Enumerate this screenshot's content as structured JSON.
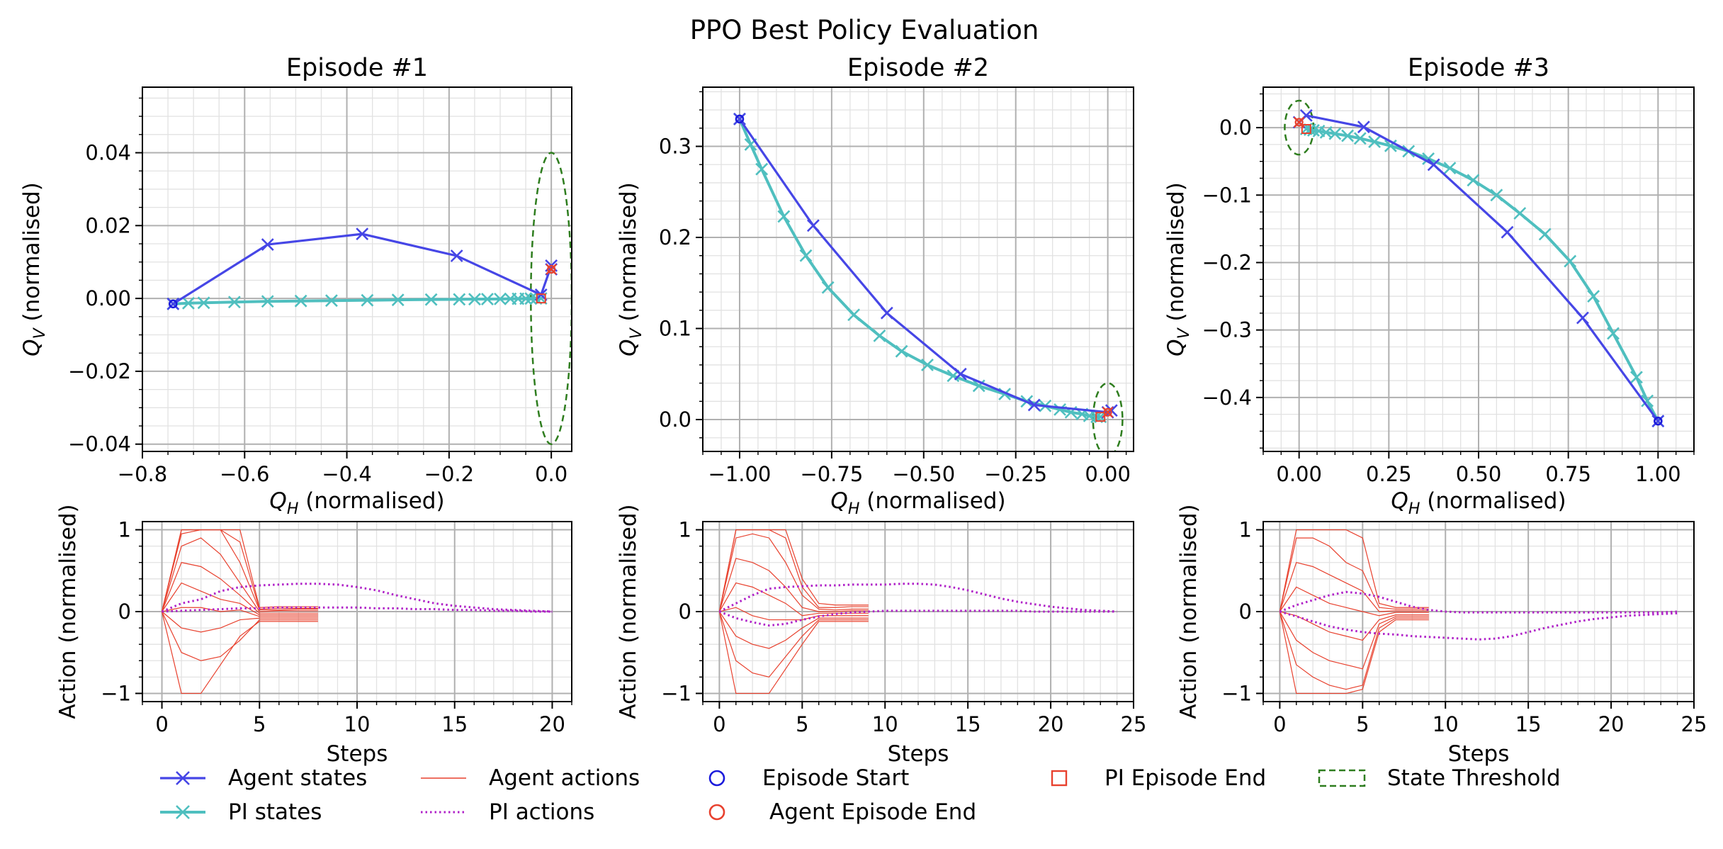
{
  "figure_title": "PPO Best Policy Evaluation",
  "colors": {
    "agent_state": "#4646e6",
    "pi_state": "#4fbfbf",
    "agent_action": "#e8412e",
    "pi_action": "#b022c8",
    "episode_start": "#1b1bdc",
    "agent_end": "#e8412e",
    "pi_end": "#e8412e",
    "threshold": "#2e7d1e",
    "grid_major": "#b0b0b0",
    "grid_minor": "#e2e2e2"
  },
  "legend": {
    "agent_states": "Agent states",
    "pi_states": "PI states",
    "agent_actions": "Agent actions",
    "pi_actions": "PI actions",
    "episode_start": "Episode Start",
    "agent_episode_end": "Agent Episode End",
    "pi_episode_end": "PI Episode End",
    "state_threshold": "State Threshold"
  },
  "chart_data": [
    {
      "type": "line",
      "title": "Episode #1",
      "xlabel_base": "Q",
      "xlabel_sub": "H",
      "xlabel_rest": " (normalised)",
      "ylabel_base": "Q",
      "ylabel_sub": "V",
      "ylabel_rest": " (normalised)",
      "xlim": [
        -0.8,
        0.04
      ],
      "ylim": [
        -0.042,
        0.058
      ],
      "xticks": [
        -0.8,
        -0.6,
        -0.4,
        -0.2,
        0.0
      ],
      "xtick_labels": [
        "−0.8",
        "−0.6",
        "−0.4",
        "−0.2",
        "0.0"
      ],
      "yticks": [
        -0.04,
        -0.02,
        0.0,
        0.02,
        0.04
      ],
      "ytick_labels": [
        "−0.04",
        "−0.02",
        "0.00",
        "0.02",
        "0.04"
      ],
      "x_minor_step": 0.05,
      "y_minor_step": 0.005,
      "threshold": {
        "cx": 0.0,
        "cy": 0.0,
        "rx": 0.04,
        "ry": 0.04
      },
      "episode_start": [
        -0.74,
        -0.0015
      ],
      "agent_end": [
        0.0,
        0.008
      ],
      "pi_end": [
        -0.02,
        0.0
      ],
      "agent_states": [
        [
          -0.74,
          -0.0015
        ],
        [
          -0.555,
          0.0148
        ],
        [
          -0.37,
          0.0177
        ],
        [
          -0.185,
          0.0117
        ],
        [
          -0.02,
          0.001
        ],
        [
          0.0,
          0.009
        ],
        [
          0.0,
          0.008
        ]
      ],
      "pi_states": [
        [
          -0.74,
          -0.0015
        ],
        [
          -0.71,
          -0.0013
        ],
        [
          -0.68,
          -0.0012
        ],
        [
          -0.62,
          -0.001
        ],
        [
          -0.555,
          -0.0008
        ],
        [
          -0.49,
          -0.0007
        ],
        [
          -0.43,
          -0.0006
        ],
        [
          -0.36,
          -0.0005
        ],
        [
          -0.3,
          -0.0004
        ],
        [
          -0.235,
          -0.0003
        ],
        [
          -0.18,
          -0.00025
        ],
        [
          -0.15,
          -0.0002
        ],
        [
          -0.125,
          -0.00018
        ],
        [
          -0.1,
          -0.00015
        ],
        [
          -0.08,
          -0.0001
        ],
        [
          -0.065,
          -8e-05
        ],
        [
          -0.05,
          -5e-05
        ],
        [
          -0.04,
          -3e-05
        ],
        [
          -0.03,
          -2e-05
        ],
        [
          -0.02,
          0.0
        ]
      ]
    },
    {
      "type": "line",
      "title": "Episode #2",
      "xlabel_base": "Q",
      "xlabel_sub": "H",
      "xlabel_rest": " (normalised)",
      "ylabel_base": "Q",
      "ylabel_sub": "V",
      "ylabel_rest": " (normalised)",
      "xlim": [
        -1.1,
        0.07
      ],
      "ylim": [
        -0.035,
        0.365
      ],
      "xticks": [
        -1.0,
        -0.75,
        -0.5,
        -0.25,
        0.0
      ],
      "xtick_labels": [
        "−1.00",
        "−0.75",
        "−0.50",
        "−0.25",
        "0.00"
      ],
      "yticks": [
        0.0,
        0.1,
        0.2,
        0.3
      ],
      "ytick_labels": [
        "0.0",
        "0.1",
        "0.2",
        "0.3"
      ],
      "x_minor_step": 0.05,
      "y_minor_step": 0.02,
      "threshold": {
        "cx": 0.0,
        "cy": 0.0,
        "rx": 0.04,
        "ry": 0.04
      },
      "episode_start": [
        -1.0,
        0.33
      ],
      "agent_end": [
        0.0,
        0.008
      ],
      "pi_end": [
        -0.02,
        0.003
      ],
      "agent_states": [
        [
          -1.0,
          0.33
        ],
        [
          -0.8,
          0.213
        ],
        [
          -0.6,
          0.117
        ],
        [
          -0.4,
          0.05
        ],
        [
          -0.2,
          0.016
        ],
        [
          0.0,
          0.008
        ],
        [
          0.01,
          0.01
        ]
      ],
      "pi_states": [
        [
          -1.0,
          0.33
        ],
        [
          -0.97,
          0.302
        ],
        [
          -0.94,
          0.275
        ],
        [
          -0.88,
          0.223
        ],
        [
          -0.82,
          0.18
        ],
        [
          -0.76,
          0.145
        ],
        [
          -0.69,
          0.115
        ],
        [
          -0.62,
          0.092
        ],
        [
          -0.56,
          0.075
        ],
        [
          -0.49,
          0.06
        ],
        [
          -0.42,
          0.048
        ],
        [
          -0.35,
          0.037
        ],
        [
          -0.28,
          0.028
        ],
        [
          -0.22,
          0.02
        ],
        [
          -0.17,
          0.015
        ],
        [
          -0.13,
          0.011
        ],
        [
          -0.1,
          0.008
        ],
        [
          -0.07,
          0.006
        ],
        [
          -0.05,
          0.004
        ],
        [
          -0.03,
          0.003
        ],
        [
          -0.02,
          0.003
        ]
      ]
    },
    {
      "type": "line",
      "title": "Episode #3",
      "xlabel_base": "Q",
      "xlabel_sub": "H",
      "xlabel_rest": " (normalised)",
      "ylabel_base": "Q",
      "ylabel_sub": "V",
      "ylabel_rest": " (normalised)",
      "xlim": [
        -0.1,
        1.1
      ],
      "ylim": [
        -0.48,
        0.06
      ],
      "xticks": [
        0.0,
        0.25,
        0.5,
        0.75,
        1.0
      ],
      "xtick_labels": [
        "0.00",
        "0.25",
        "0.50",
        "0.75",
        "1.00"
      ],
      "yticks": [
        -0.4,
        -0.3,
        -0.2,
        -0.1,
        0.0
      ],
      "ytick_labels": [
        "−0.4",
        "−0.3",
        "−0.2",
        "−0.1",
        "0.0"
      ],
      "x_minor_step": 0.05,
      "y_minor_step": 0.025,
      "threshold": {
        "cx": 0.0,
        "cy": 0.0,
        "rx": 0.04,
        "ry": 0.04
      },
      "episode_start": [
        1.0,
        -0.435
      ],
      "agent_end": [
        0.0,
        0.008
      ],
      "pi_end": [
        0.02,
        -0.002
      ],
      "agent_states": [
        [
          1.0,
          -0.435
        ],
        [
          0.79,
          -0.282
        ],
        [
          0.58,
          -0.155
        ],
        [
          0.375,
          -0.055
        ],
        [
          0.18,
          0.001
        ],
        [
          0.02,
          0.018
        ],
        [
          0.0,
          0.008
        ]
      ],
      "pi_states": [
        [
          1.0,
          -0.435
        ],
        [
          0.97,
          -0.405
        ],
        [
          0.94,
          -0.37
        ],
        [
          0.875,
          -0.305
        ],
        [
          0.82,
          -0.25
        ],
        [
          0.755,
          -0.198
        ],
        [
          0.685,
          -0.158
        ],
        [
          0.615,
          -0.127
        ],
        [
          0.55,
          -0.1
        ],
        [
          0.485,
          -0.078
        ],
        [
          0.42,
          -0.06
        ],
        [
          0.36,
          -0.046
        ],
        [
          0.305,
          -0.035
        ],
        [
          0.255,
          -0.027
        ],
        [
          0.21,
          -0.021
        ],
        [
          0.17,
          -0.016
        ],
        [
          0.135,
          -0.012
        ],
        [
          0.1,
          -0.009
        ],
        [
          0.075,
          -0.007
        ],
        [
          0.055,
          -0.005
        ],
        [
          0.04,
          -0.004
        ],
        [
          0.03,
          -0.003
        ],
        [
          0.02,
          -0.002
        ]
      ]
    },
    {
      "type": "line",
      "xlabel": "Steps",
      "ylabel": "Action (normalised)",
      "xlim": [
        -1,
        21
      ],
      "ylim": [
        -1.1,
        1.1
      ],
      "xticks": [
        0,
        5,
        10,
        15,
        20
      ],
      "xtick_labels": [
        "0",
        "5",
        "10",
        "15",
        "20"
      ],
      "yticks": [
        -1,
        0,
        1
      ],
      "ytick_labels": [
        "−1",
        "0",
        "1"
      ],
      "y_minor_step": 0.2,
      "agent_actions": [
        [
          0,
          1,
          1,
          1,
          1,
          0.05,
          0.06,
          0.06,
          0.06
        ],
        [
          0,
          1,
          1,
          1,
          0.85,
          0.03,
          0.04,
          0.04,
          0.04
        ],
        [
          0,
          0.95,
          1,
          1,
          0.6,
          0.02,
          0.02,
          0.03,
          0.03
        ],
        [
          0,
          0.8,
          0.9,
          0.7,
          0.35,
          0.0,
          0.01,
          0.01,
          0.01
        ],
        [
          0,
          0.6,
          0.55,
          0.4,
          0.2,
          -0.02,
          -0.02,
          -0.02,
          -0.02
        ],
        [
          0,
          0.35,
          0.25,
          0.15,
          0.1,
          -0.04,
          -0.04,
          -0.04,
          -0.04
        ],
        [
          0,
          0.05,
          0.05,
          0.0,
          0.02,
          -0.06,
          -0.06,
          -0.06,
          -0.06
        ],
        [
          0,
          -0.2,
          -0.25,
          -0.2,
          -0.1,
          -0.08,
          -0.08,
          -0.08,
          -0.08
        ],
        [
          0,
          -0.5,
          -0.6,
          -0.55,
          -0.35,
          -0.1,
          -0.1,
          -0.1,
          -0.1
        ],
        [
          0,
          -1.0,
          -1.0,
          -0.65,
          -0.3,
          -0.12,
          -0.12,
          -0.12,
          -0.12
        ]
      ],
      "pi_actions": [
        [
          0,
          0.1,
          0.15,
          0.25,
          0.3,
          0.32,
          0.33,
          0.34,
          0.34,
          0.33,
          0.3,
          0.26,
          0.2,
          0.15,
          0.1,
          0.07,
          0.05,
          0.03,
          0.02,
          0.01,
          0.0
        ],
        [
          0,
          0.01,
          0.02,
          0.03,
          0.04,
          0.04,
          0.05,
          0.05,
          0.05,
          0.05,
          0.05,
          0.04,
          0.04,
          0.03,
          0.03,
          0.02,
          0.02,
          0.01,
          0.01,
          0.0,
          0.0
        ]
      ]
    },
    {
      "type": "line",
      "xlabel": "Steps",
      "ylabel": "Action (normalised)",
      "xlim": [
        -1,
        25
      ],
      "ylim": [
        -1.1,
        1.1
      ],
      "xticks": [
        0,
        5,
        10,
        15,
        20,
        25
      ],
      "xtick_labels": [
        "0",
        "5",
        "10",
        "15",
        "20",
        "25"
      ],
      "yticks": [
        -1,
        0,
        1
      ],
      "ytick_labels": [
        "−1",
        "0",
        "1"
      ],
      "y_minor_step": 0.2,
      "agent_actions": [
        [
          0,
          1,
          1,
          1,
          1,
          0.4,
          0.1,
          0.08,
          0.08,
          0.08
        ],
        [
          0,
          1,
          1,
          1,
          0.9,
          0.3,
          0.05,
          0.05,
          0.06,
          0.06
        ],
        [
          0,
          0.9,
          0.95,
          0.9,
          0.6,
          0.2,
          0.03,
          0.02,
          0.03,
          0.03
        ],
        [
          0,
          0.65,
          0.6,
          0.5,
          0.3,
          0.05,
          0.0,
          0.0,
          0.01,
          0.01
        ],
        [
          0,
          0.35,
          0.3,
          0.2,
          0.1,
          -0.05,
          -0.02,
          -0.02,
          -0.02,
          -0.02
        ],
        [
          0,
          0.05,
          -0.05,
          -0.1,
          -0.1,
          -0.1,
          -0.05,
          -0.05,
          -0.05,
          -0.05
        ],
        [
          0,
          -0.3,
          -0.4,
          -0.45,
          -0.35,
          -0.2,
          -0.08,
          -0.08,
          -0.08,
          -0.08
        ],
        [
          0,
          -0.6,
          -0.75,
          -0.8,
          -0.55,
          -0.3,
          -0.1,
          -0.1,
          -0.1,
          -0.1
        ],
        [
          0,
          -1.0,
          -1.0,
          -1.0,
          -0.7,
          -0.4,
          -0.12,
          -0.12,
          -0.12,
          -0.12
        ]
      ],
      "pi_actions": [
        [
          0,
          0.1,
          0.2,
          0.28,
          0.3,
          0.31,
          0.32,
          0.32,
          0.33,
          0.33,
          0.33,
          0.34,
          0.34,
          0.33,
          0.3,
          0.26,
          0.21,
          0.16,
          0.12,
          0.09,
          0.06,
          0.04,
          0.02,
          0.01,
          0.0
        ],
        [
          0,
          -0.08,
          -0.13,
          -0.17,
          -0.15,
          -0.1,
          -0.06,
          -0.03,
          -0.01,
          0.0,
          0.01,
          0.01,
          0.01,
          0.01,
          0.01,
          0.01,
          0.01,
          0.01,
          0.01,
          0.0,
          0.0,
          0.0,
          0.0,
          0.0,
          0.0
        ]
      ]
    },
    {
      "type": "line",
      "xlabel": "Steps",
      "ylabel": "Action (normalised)",
      "xlim": [
        -1,
        25
      ],
      "ylim": [
        -1.1,
        1.1
      ],
      "xticks": [
        0,
        5,
        10,
        15,
        20,
        25
      ],
      "xtick_labels": [
        "0",
        "5",
        "10",
        "15",
        "20",
        "25"
      ],
      "yticks": [
        -1,
        0,
        1
      ],
      "ytick_labels": [
        "−1",
        "0",
        "1"
      ],
      "y_minor_step": 0.2,
      "agent_actions": [
        [
          0,
          1,
          1,
          1,
          1,
          0.9,
          0.1,
          0.05,
          0.05,
          0.05
        ],
        [
          0,
          0.9,
          0.9,
          0.8,
          0.6,
          0.5,
          0.05,
          0.03,
          0.03,
          0.03
        ],
        [
          0,
          0.6,
          0.55,
          0.45,
          0.35,
          0.25,
          0.0,
          0.01,
          0.01,
          0.01
        ],
        [
          0,
          0.3,
          0.2,
          0.1,
          0.05,
          0.0,
          -0.05,
          -0.01,
          -0.01,
          -0.01
        ],
        [
          0,
          -0.05,
          -0.15,
          -0.25,
          -0.3,
          -0.35,
          -0.1,
          -0.04,
          -0.04,
          -0.04
        ],
        [
          0,
          -0.35,
          -0.5,
          -0.6,
          -0.65,
          -0.7,
          -0.15,
          -0.06,
          -0.06,
          -0.06
        ],
        [
          0,
          -0.65,
          -0.8,
          -0.9,
          -0.95,
          -0.9,
          -0.2,
          -0.08,
          -0.08,
          -0.08
        ],
        [
          0,
          -1.0,
          -1.0,
          -1.0,
          -1.0,
          -0.95,
          -0.25,
          -0.1,
          -0.1,
          -0.1
        ]
      ],
      "pi_actions": [
        [
          0,
          0.08,
          0.14,
          0.2,
          0.24,
          0.22,
          0.18,
          0.12,
          0.06,
          0.02,
          0.0,
          -0.01,
          -0.01,
          -0.01,
          -0.01,
          -0.01,
          -0.01,
          -0.01,
          -0.01,
          -0.01,
          -0.01,
          -0.01,
          -0.01,
          -0.01,
          0.0
        ],
        [
          0,
          -0.06,
          -0.12,
          -0.18,
          -0.22,
          -0.25,
          -0.27,
          -0.28,
          -0.3,
          -0.31,
          -0.32,
          -0.33,
          -0.34,
          -0.33,
          -0.3,
          -0.25,
          -0.2,
          -0.16,
          -0.12,
          -0.09,
          -0.07,
          -0.05,
          -0.04,
          -0.03,
          -0.02
        ]
      ]
    }
  ]
}
